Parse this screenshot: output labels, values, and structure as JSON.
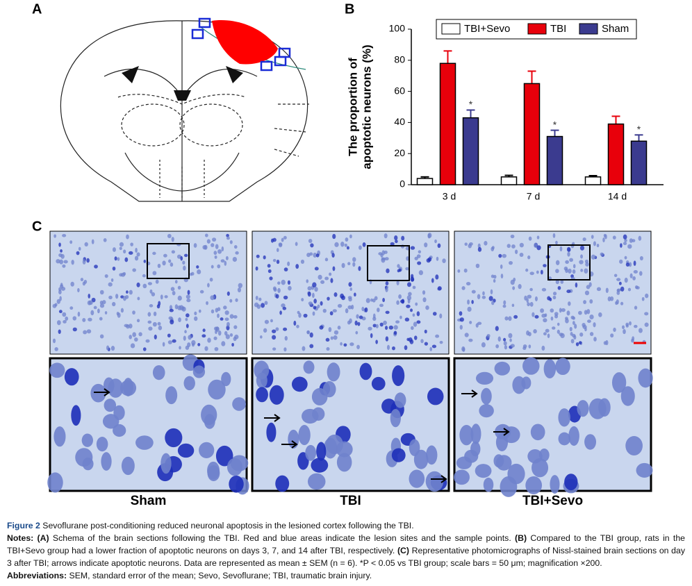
{
  "panels": {
    "a_label": "A",
    "b_label": "B",
    "c_label": "C"
  },
  "chart_data": {
    "type": "bar",
    "ylabel": [
      "The proportion of",
      "apoptotic neurons (%)"
    ],
    "categories": [
      "3 d",
      "7 d",
      "14 d"
    ],
    "series": [
      {
        "name": "TBI+Sevo",
        "color": "#ffffff",
        "values": [
          4,
          5,
          5
        ],
        "errors": [
          1,
          1,
          0.8
        ]
      },
      {
        "name": "TBI",
        "color": "#e8000b",
        "values": [
          78,
          65,
          39
        ],
        "errors": [
          8,
          8,
          5
        ]
      },
      {
        "name": "Sham",
        "color": "#3b3b8f",
        "values": [
          43,
          31,
          28
        ],
        "errors": [
          5,
          4,
          4
        ],
        "annotations": [
          "*",
          "*",
          "*"
        ]
      }
    ],
    "ylim": [
      0,
      100
    ],
    "yticks": [
      0,
      20,
      40,
      60,
      80,
      100
    ],
    "grid": false,
    "legend": "top"
  },
  "micrographs": {
    "labels": [
      "Sham",
      "TBI",
      "TBI+Sevo"
    ]
  },
  "caption": {
    "label": "Figure 2",
    "text": "Sevoflurane post-conditioning reduced neuronal apoptosis in the lesioned cortex following the TBI."
  },
  "notes": {
    "label": "Notes:",
    "items": [
      {
        "label": "(A)",
        "text": "Schema of the brain sections following the TBI. Red and blue areas indicate the lesion sites and the sample points."
      },
      {
        "label": "(B)",
        "text": "Compared to the TBI group, rats in the TBI+Sevo group had a lower fraction of apoptotic neurons on days 3, 7, and 14 after TBI, respectively."
      },
      {
        "label": "(C)",
        "text": "Representative photomicrographs of Nissl-stained brain sections on day 3 after TBI; arrows indicate apoptotic neurons. Data are represented as mean ± SEM (n = 6). *P < 0.05 vs TBI group; scale bars = 50 μm; magnification ×200."
      }
    ]
  },
  "abbreviations": {
    "label": "Abbreviations:",
    "text": "SEM, standard error of the mean; Sevo, Sevoflurane; TBI, traumatic brain injury."
  }
}
